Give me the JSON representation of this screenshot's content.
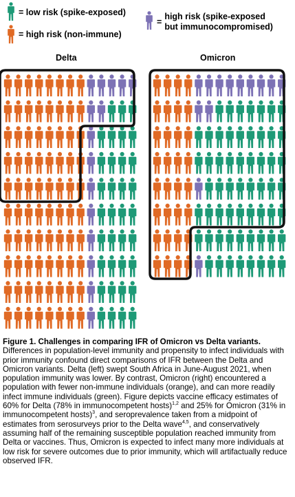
{
  "colors": {
    "green": "#1e9a77",
    "orange": "#e06a25",
    "purple": "#7d72b5",
    "outline": "#111111"
  },
  "legend": {
    "low": "= low risk (spike-exposed)",
    "high": "= high risk (non-immune)",
    "immuno_line1": "high risk (spike-exposed",
    "immuno_line2": "but immunocompromised)",
    "immuno_eq": "="
  },
  "panels": {
    "delta": {
      "title": "Delta",
      "rows": [
        "OOOOOOOOPPPPP",
        "OOOOOOOOPPGGG",
        "OOOOOOOOPGGGG",
        "OOOOOOOOPGGGG",
        "OOOOOOOOPGGGG",
        "OOOOOOOOPGGGG",
        "OOOOOOOOPGGGG",
        "OOOOOOOOPGGGG",
        "OOOOOOOOPGGGG",
        "OOOOOOOOPGGGG"
      ]
    },
    "omicron": {
      "title": "Omicron",
      "rows": [
        "OOOOPPPPPPPPP",
        "OOOOPPGGGGGGG",
        "OOOOGGGGGGGGG",
        "OOOOGGGGGGGGG",
        "OOOOPGGGGGGGG",
        "OOOOGGGGGGGGG",
        "OOOOGGGGGGGGG",
        "OOOOPGGGGGGGG"
      ]
    }
  },
  "caption": {
    "title": "Figure 1. Challenges in comparing IFR of Omicron vs Delta variants.",
    "p1": " Differences in population-level immunity and propensity to infect individuals with prior immunity confound direct comparisons of IFR between the Delta and Omicron variants. Delta (left) swept South Africa in June-August 2021, when population immunity was lower. By contrast, Omicron (right) encountered a population with fewer non-immune individuals (orange), and can more readily infect immune individuals (green). Figure depicts vaccine efficacy estimates of 60% for Delta (78% in immunocompetent hosts)",
    "sup1": "1,2",
    "p2": " and 25% for Omicron (31% in immunocompetent hosts)",
    "sup2": "3",
    "p3": ", and seroprevalence taken from a midpoint of estimates from serosurveys prior to the Delta wave",
    "sup3": "4,5",
    "p4": ", and conservatively assuming half of the remaining susceptible population reached immunity from Delta or vaccines. Thus, Omicron is expected to infect many more individuals at low risk for severe outcomes due to prior immunity, which will artifactually reduce observed IFR."
  }
}
